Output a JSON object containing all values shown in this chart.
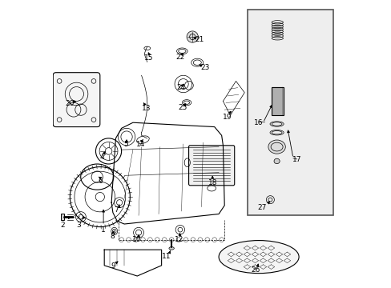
{
  "title": "",
  "bg_color": "#ffffff",
  "line_color": "#000000",
  "box_color": "#e8e8e8",
  "fig_width": 4.89,
  "fig_height": 3.6,
  "dpi": 100
}
